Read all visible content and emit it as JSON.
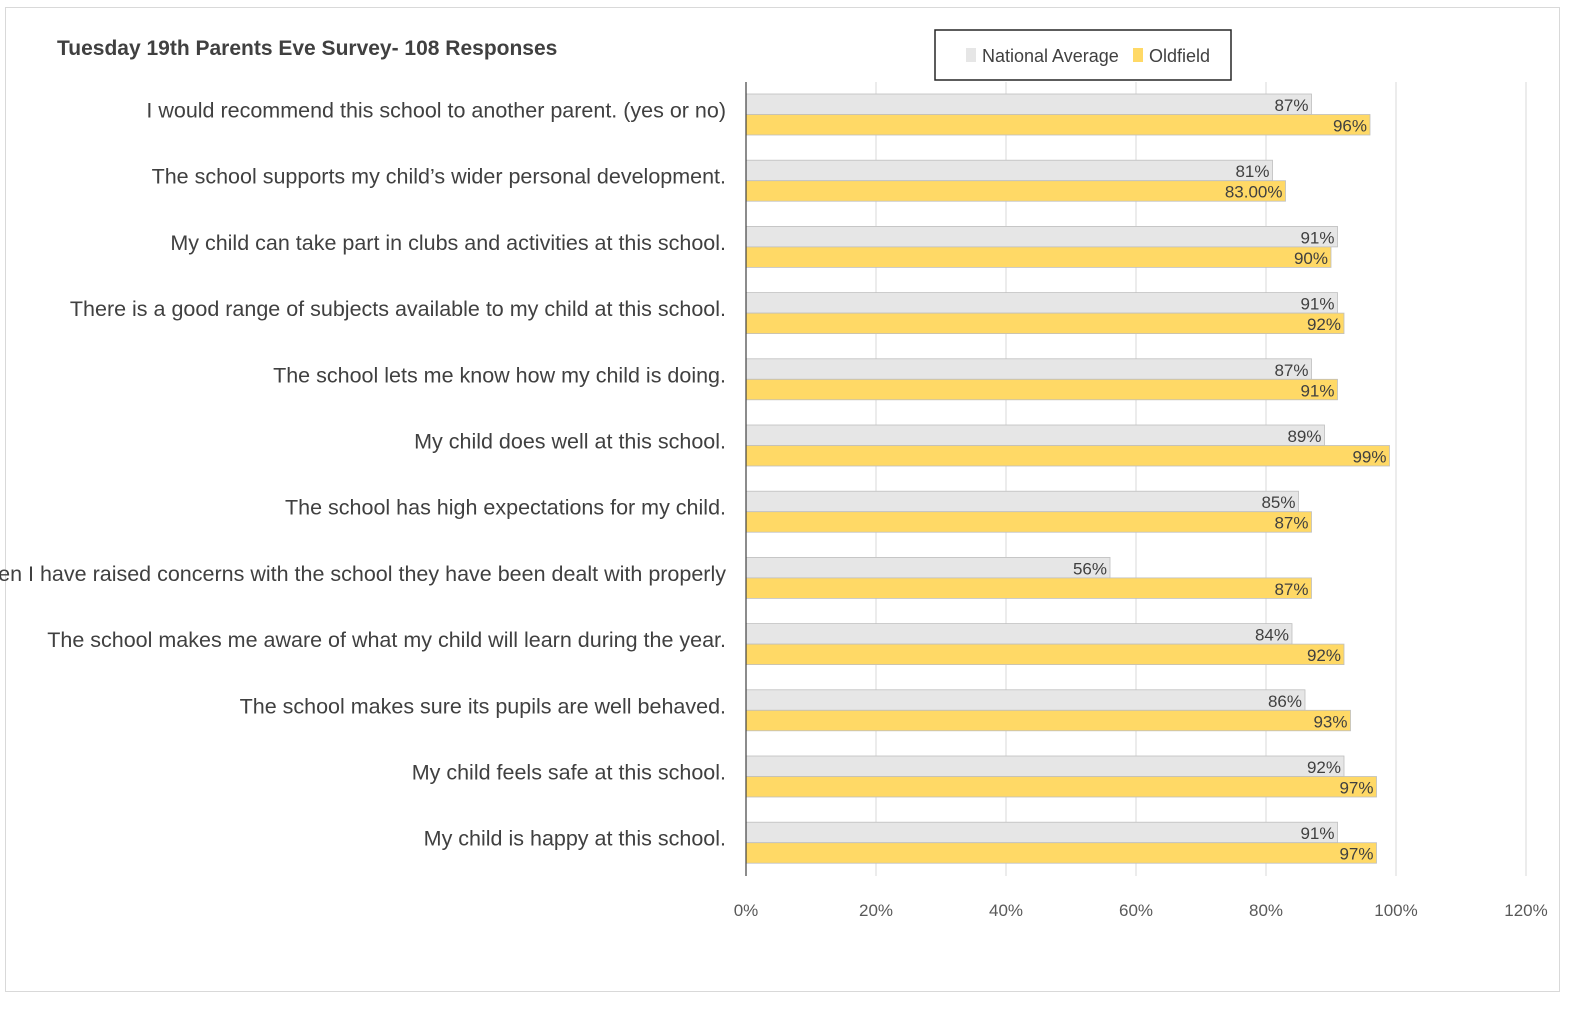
{
  "chart_data": {
    "type": "bar",
    "orientation": "horizontal",
    "title": "Tuesday 19th Parents Eve Survey- 108 Responses",
    "categories": [
      "I would recommend this school to another parent. (yes or no)",
      "The school supports my child’s wider personal development.",
      "My child can take part in clubs and activities at this school.",
      "There is a good range of subjects available to my child at this school.",
      "The school lets me know how my child is doing.",
      "My child does well at this school.",
      "The school has high expectations for my child.",
      "When I have raised concerns with the school they have been dealt with properly",
      "The school makes me aware of what my child will learn during the year.",
      "The school makes sure its pupils are well behaved.",
      "My child feels safe at this school.",
      "My child is happy at this school."
    ],
    "series": [
      {
        "name": "National Average",
        "color": "#e6e6e6",
        "values": [
          87,
          81,
          91,
          91,
          87,
          89,
          85,
          56,
          84,
          86,
          92,
          91
        ],
        "labels": [
          "87%",
          "81%",
          "91%",
          "91%",
          "87%",
          "89%",
          "85%",
          "56%",
          "84%",
          "86%",
          "92%",
          "91%"
        ]
      },
      {
        "name": "Oldfield",
        "color": "#ffd966",
        "values": [
          96,
          83,
          90,
          92,
          91,
          99,
          87,
          87,
          92,
          93,
          97,
          97
        ],
        "labels": [
          "96%",
          "83.00%",
          "90%",
          "92%",
          "91%",
          "99%",
          "87%",
          "87%",
          "92%",
          "93%",
          "97%",
          "97%"
        ]
      }
    ],
    "xlim": [
      0,
      120
    ],
    "xticks": [
      0,
      20,
      40,
      60,
      80,
      100,
      120
    ],
    "xtick_labels": [
      "0%",
      "20%",
      "40%",
      "60%",
      "80%",
      "100%",
      "120%"
    ],
    "xlabel": "",
    "ylabel": "",
    "grid": "vertical",
    "legend_position": "top-right",
    "colors": {
      "text": "#404040",
      "tick_text": "#595959",
      "gridline": "#d9d9d9",
      "axis": "#404040",
      "bar_edge": "#bfbfbf"
    }
  }
}
